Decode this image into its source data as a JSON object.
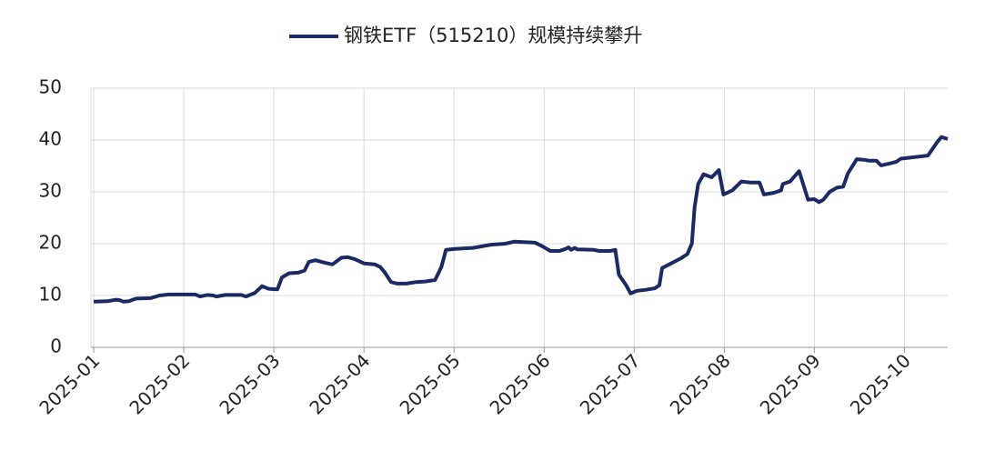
{
  "chart_data": {
    "type": "line",
    "x": [
      0,
      0.15,
      0.25,
      0.29,
      0.33,
      0.39,
      0.47,
      0.63,
      0.73,
      0.83,
      1.13,
      1.18,
      1.26,
      1.33,
      1.36,
      1.46,
      1.64,
      1.69,
      1.79,
      1.87,
      1.94,
      2.04,
      2.09,
      2.17,
      2.27,
      2.34,
      2.39,
      2.46,
      2.57,
      2.65,
      2.75,
      2.82,
      2.9,
      3.0,
      3.12,
      3.18,
      3.23,
      3.3,
      3.37,
      3.47,
      3.58,
      3.68,
      3.79,
      3.86,
      3.91,
      4.01,
      4.21,
      4.41,
      4.57,
      4.67,
      4.77,
      4.9,
      4.97,
      5.07,
      5.17,
      5.24,
      5.27,
      5.3,
      5.34,
      5.37,
      5.55,
      5.61,
      5.73,
      5.79,
      5.83,
      5.91,
      5.96,
      6.03,
      6.13,
      6.23,
      6.28,
      6.31,
      6.41,
      6.52,
      6.59,
      6.64,
      6.67,
      6.71,
      6.77,
      6.86,
      6.94,
      6.99,
      7.09,
      7.19,
      7.29,
      7.39,
      7.44,
      7.55,
      7.63,
      7.65,
      7.73,
      7.83,
      7.93,
      8.0,
      8.05,
      8.1,
      8.17,
      8.25,
      8.32,
      8.37,
      8.47,
      8.55,
      8.61,
      8.69,
      8.74,
      8.84,
      8.91,
      8.96,
      9.06,
      9.26,
      9.36,
      9.41,
      9.48
    ],
    "series": [
      {
        "name": "钢铁ETF（515210）规模持续攀升",
        "color": "#1c2a64",
        "values": [
          8.8,
          8.9,
          9.2,
          9.1,
          8.8,
          8.9,
          9.4,
          9.5,
          10.0,
          10.2,
          10.2,
          9.8,
          10.1,
          10.0,
          9.8,
          10.1,
          10.1,
          9.8,
          10.5,
          11.8,
          11.3,
          11.2,
          13.5,
          14.3,
          14.4,
          14.8,
          16.5,
          16.8,
          16.3,
          16.0,
          17.3,
          17.4,
          17.0,
          16.2,
          16.0,
          15.5,
          14.5,
          12.6,
          12.3,
          12.3,
          12.6,
          12.7,
          13.0,
          15.5,
          18.8,
          19.0,
          19.2,
          19.8,
          20.0,
          20.4,
          20.3,
          20.2,
          19.6,
          18.6,
          18.6,
          19.0,
          19.3,
          18.8,
          19.2,
          18.9,
          18.8,
          18.6,
          18.6,
          18.8,
          14.0,
          12.0,
          10.4,
          10.9,
          11.1,
          11.4,
          12.0,
          15.3,
          16.2,
          17.2,
          18.0,
          20.0,
          27.0,
          31.5,
          33.4,
          32.8,
          34.2,
          29.5,
          30.3,
          32.0,
          31.8,
          31.8,
          29.5,
          29.8,
          30.3,
          31.5,
          32.0,
          34.0,
          28.5,
          28.6,
          28.0,
          28.5,
          30.0,
          30.8,
          31.0,
          33.5,
          36.3,
          36.2,
          36.0,
          36.0,
          35.1,
          35.5,
          35.8,
          36.4,
          36.6,
          37.0,
          39.5,
          40.6,
          40.2
        ]
      }
    ],
    "xlim": [
      0,
      9.48
    ],
    "xticks": [
      {
        "value": 0,
        "label": "2025-01"
      },
      {
        "value": 1,
        "label": "2025-02"
      },
      {
        "value": 2,
        "label": "2025-03"
      },
      {
        "value": 3,
        "label": "2025-04"
      },
      {
        "value": 4,
        "label": "2025-05"
      },
      {
        "value": 5,
        "label": "2025-06"
      },
      {
        "value": 6,
        "label": "2025-07"
      },
      {
        "value": 7,
        "label": "2025-08"
      },
      {
        "value": 8,
        "label": "2025-09"
      },
      {
        "value": 9,
        "label": "2025-10"
      }
    ],
    "ylim": [
      0,
      50
    ],
    "yticks": [
      0,
      10,
      20,
      30,
      40,
      50
    ],
    "grid": true,
    "legend": "top"
  }
}
